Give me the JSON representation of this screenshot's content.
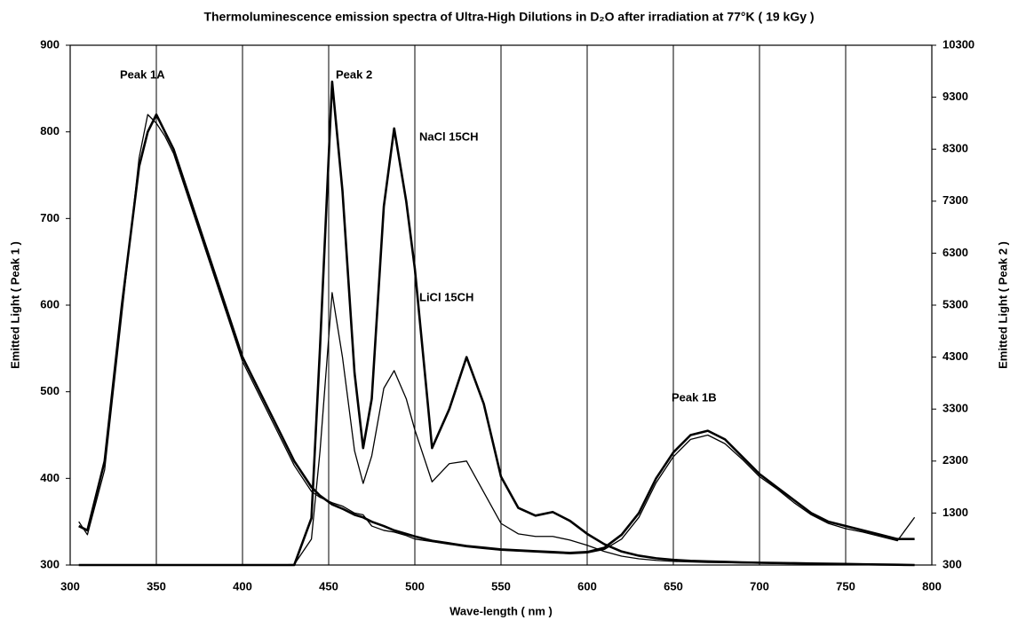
{
  "chart_data": {
    "type": "line",
    "title": "Thermoluminescence emission spectra of Ultra-High Dilutions in D₂O after irradiation at 77°K ( 19 kGy )",
    "x_label": "Wave-length ( nm )",
    "y_label": "Emitted Light ( Peak 1 )",
    "y2_label": "Emitted Light ( Peak 2 )",
    "annotations": [
      "Peak 1A",
      "Peak 2",
      "NaCl 15CH",
      "LiCl 15CH",
      "Peak 1B"
    ],
    "x": [
      305,
      310,
      320,
      330,
      340,
      345,
      350,
      355,
      360,
      370,
      380,
      390,
      400,
      410,
      420,
      430,
      440,
      445,
      452,
      458,
      465,
      470,
      475,
      482,
      488,
      495,
      500,
      510,
      520,
      530,
      540,
      550,
      560,
      570,
      580,
      590,
      600,
      610,
      620,
      630,
      640,
      650,
      660,
      670,
      680,
      690,
      700,
      710,
      720,
      730,
      740,
      750,
      760,
      770,
      780,
      790
    ],
    "series": [
      {
        "color": "#000000",
        "axis": "y",
        "values": [
          345,
          340,
          420,
          600,
          760,
          800,
          820,
          800,
          780,
          720,
          660,
          600,
          540,
          500,
          460,
          420,
          390,
          380,
          370,
          365,
          358,
          355,
          350,
          345,
          340,
          336,
          333,
          328,
          325,
          322,
          320,
          318,
          317,
          316,
          315,
          314,
          315,
          320,
          335,
          360,
          400,
          430,
          450,
          455,
          445,
          425,
          405,
          390,
          375,
          360,
          350,
          345,
          340,
          335,
          330,
          330
        ]
      },
      {
        "color": "#000000",
        "axis": "y",
        "values": [
          350,
          335,
          410,
          590,
          770,
          820,
          810,
          795,
          775,
          715,
          655,
          595,
          535,
          495,
          455,
          415,
          385,
          378,
          372,
          368,
          360,
          358,
          345,
          340,
          338,
          334,
          330,
          327,
          324,
          321,
          319,
          317,
          316,
          315,
          314,
          313,
          314,
          318,
          330,
          355,
          395,
          425,
          445,
          450,
          440,
          422,
          402,
          388,
          372,
          358,
          348,
          342,
          338,
          333,
          328,
          355
        ]
      },
      {
        "color": "#000000",
        "axis": "y2",
        "values": [
          300,
          300,
          300,
          300,
          300,
          300,
          300,
          300,
          300,
          300,
          300,
          300,
          300,
          300,
          300,
          300,
          1200,
          4500,
          9600,
          7500,
          4000,
          2550,
          3500,
          7200,
          8700,
          7300,
          6000,
          2550,
          3300,
          4300,
          3400,
          2000,
          1400,
          1250,
          1320,
          1150,
          900,
          700,
          560,
          480,
          430,
          400,
          380,
          370,
          360,
          350,
          345,
          340,
          335,
          330,
          325,
          320,
          315,
          310,
          305,
          300
        ]
      },
      {
        "color": "#000000",
        "axis": "y2",
        "values": [
          300,
          300,
          300,
          300,
          300,
          300,
          300,
          300,
          300,
          300,
          300,
          300,
          300,
          300,
          300,
          310,
          800,
          2500,
          5540,
          4300,
          2500,
          1870,
          2400,
          3700,
          4040,
          3500,
          2900,
          1900,
          2250,
          2300,
          1700,
          1100,
          900,
          850,
          850,
          780,
          680,
          560,
          470,
          420,
          390,
          370,
          360,
          350,
          345,
          340,
          335,
          330,
          325,
          320,
          318,
          315,
          312,
          310,
          305,
          300
        ]
      }
    ],
    "xlim": [
      300,
      800
    ],
    "xticks": [
      300,
      350,
      400,
      450,
      500,
      550,
      600,
      650,
      700,
      750,
      800
    ],
    "ylim": [
      300,
      900
    ],
    "yticks": [
      300,
      400,
      500,
      600,
      700,
      800,
      900
    ],
    "y2lim": [
      300,
      10300
    ],
    "y2ticks": [
      300,
      1300,
      2300,
      3300,
      4300,
      5300,
      6300,
      7300,
      8300,
      9300,
      10300
    ],
    "grid": "x"
  }
}
